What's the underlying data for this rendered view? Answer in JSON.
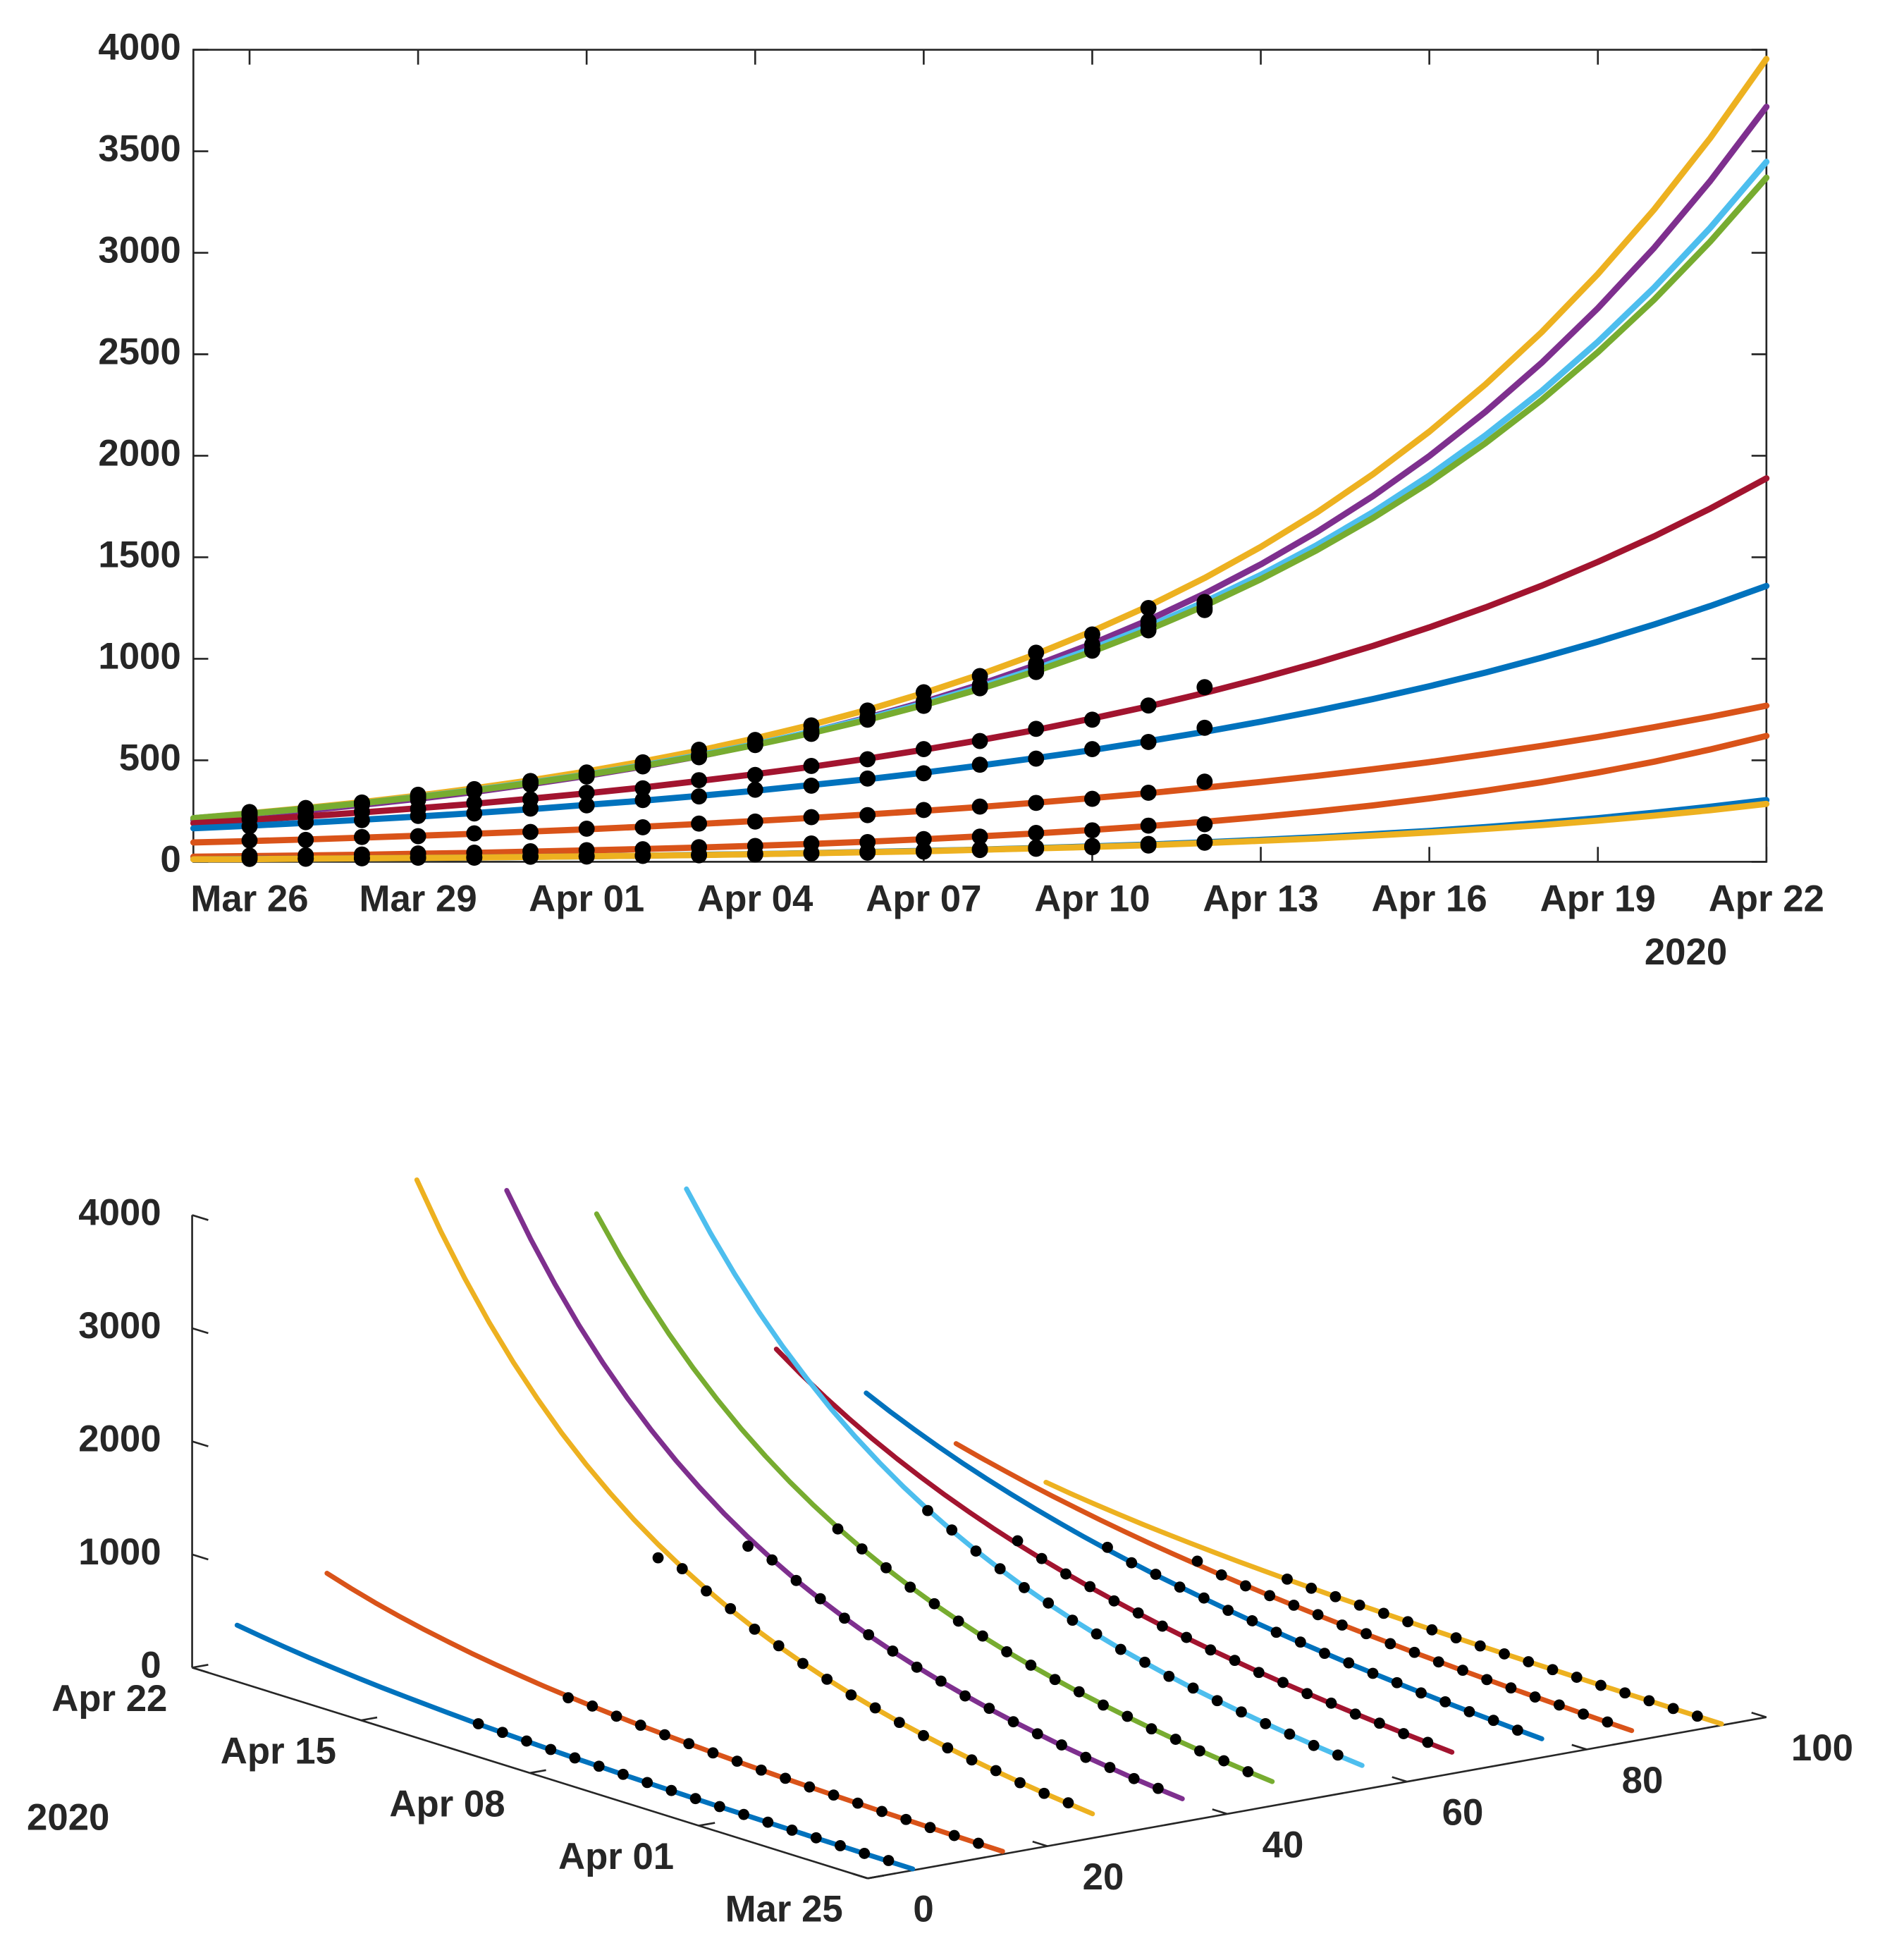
{
  "chart_data": [
    {
      "type": "line",
      "x": [
        "2020-03-25",
        "2020-03-26",
        "2020-03-27",
        "2020-03-28",
        "2020-03-29",
        "2020-03-30",
        "2020-03-31",
        "2020-04-01",
        "2020-04-02",
        "2020-04-03",
        "2020-04-04",
        "2020-04-05",
        "2020-04-06",
        "2020-04-07",
        "2020-04-08",
        "2020-04-09",
        "2020-04-10",
        "2020-04-11",
        "2020-04-12",
        "2020-04-13",
        "2020-04-14",
        "2020-04-15",
        "2020-04-16",
        "2020-04-17",
        "2020-04-18",
        "2020-04-19",
        "2020-04-20",
        "2020-04-21",
        "2020-04-22"
      ],
      "xlim": [
        "2020-03-25",
        "2020-04-22"
      ],
      "xticks": [
        {
          "value": "2020-03-26",
          "label": "Mar 26"
        },
        {
          "value": "2020-03-29",
          "label": "Mar 29"
        },
        {
          "value": "2020-04-01",
          "label": "Apr 01"
        },
        {
          "value": "2020-04-04",
          "label": "Apr 04"
        },
        {
          "value": "2020-04-07",
          "label": "Apr 07"
        },
        {
          "value": "2020-04-10",
          "label": "Apr 10"
        },
        {
          "value": "2020-04-13",
          "label": "Apr 13"
        },
        {
          "value": "2020-04-16",
          "label": "Apr 16"
        },
        {
          "value": "2020-04-19",
          "label": "Apr 19"
        },
        {
          "value": "2020-04-22",
          "label": "Apr 22"
        }
      ],
      "x_year_label": "2020",
      "ylim": [
        0,
        4000
      ],
      "yticks": [
        0,
        500,
        1000,
        1500,
        2000,
        2500,
        3000,
        3500,
        4000
      ],
      "marker_color": "#000000",
      "series": [
        {
          "color": "#EDB120",
          "values": [
            215,
            239,
            265,
            294,
            326,
            362,
            401,
            445,
            494,
            548,
            608,
            675,
            749,
            831,
            922,
            1023,
            1136,
            1260,
            1398,
            1551,
            1721,
            1910,
            2119,
            2352,
            2609,
            2895,
            3213,
            3565,
            3955
          ],
          "observed": [
            null,
            245,
            262,
            290,
            330,
            358,
            398,
            440,
            490,
            552,
            600,
            672,
            745,
            835,
            915,
            1030,
            1120,
            1250,
            1280,
            null,
            null,
            null,
            null,
            null,
            null,
            null,
            null,
            null,
            null
          ]
        },
        {
          "color": "#7E2F8E",
          "values": [
            205,
            227,
            252,
            280,
            310,
            344,
            382,
            423,
            469,
            520,
            577,
            640,
            710,
            787,
            873,
            969,
            1074,
            1191,
            1321,
            1465,
            1625,
            1802,
            1999,
            2217,
            2458,
            2727,
            3024,
            3354,
            3719
          ],
          "observed": [
            null,
            230,
            250,
            282,
            305,
            348,
            380,
            420,
            472,
            515,
            580,
            636,
            712,
            790,
            870,
            975,
            1070,
            1185,
            1240,
            null,
            null,
            null,
            null,
            null,
            null,
            null,
            null,
            null,
            null
          ]
        },
        {
          "color": "#4DBEEE",
          "values": [
            215,
            237,
            262,
            289,
            320,
            353,
            390,
            430,
            475,
            525,
            579,
            640,
            706,
            780,
            861,
            951,
            1050,
            1159,
            1280,
            1413,
            1560,
            1723,
            1902,
            2101,
            2319,
            2561,
            2828,
            3123,
            3448
          ],
          "observed": [
            null,
            240,
            258,
            292,
            318,
            355,
            388,
            433,
            470,
            528,
            575,
            645,
            700,
            785,
            855,
            955,
            1045,
            1165,
            1270,
            null,
            null,
            null,
            null,
            null,
            null,
            null,
            null,
            null,
            null
          ]
        },
        {
          "color": "#77AC30",
          "values": [
            215,
            237,
            262,
            289,
            319,
            351,
            388,
            428,
            472,
            521,
            575,
            634,
            699,
            772,
            851,
            939,
            1036,
            1143,
            1261,
            1392,
            1535,
            1694,
            1869,
            2062,
            2275,
            2510,
            2769,
            3055,
            3370
          ],
          "observed": [
            null,
            235,
            265,
            286,
            322,
            348,
            392,
            425,
            476,
            518,
            578,
            630,
            703,
            768,
            855,
            935,
            1040,
            1140,
            1250,
            null,
            null,
            null,
            null,
            null,
            null,
            null,
            null,
            null,
            null
          ]
        },
        {
          "color": "#A2142F",
          "values": [
            190,
            206,
            224,
            243,
            264,
            286,
            311,
            337,
            366,
            398,
            432,
            468,
            508,
            552,
            599,
            650,
            706,
            766,
            832,
            903,
            980,
            1064,
            1155,
            1253,
            1360,
            1477,
            1603,
            1740,
            1889
          ],
          "observed": [
            null,
            210,
            220,
            246,
            260,
            290,
            308,
            340,
            362,
            402,
            428,
            472,
            505,
            555,
            595,
            655,
            700,
            770,
            860,
            null,
            null,
            null,
            null,
            null,
            null,
            null,
            null,
            null,
            null
          ]
        },
        {
          "color": "#0072BD",
          "values": [
            165,
            178,
            192,
            207,
            223,
            240,
            259,
            280,
            301,
            325,
            350,
            378,
            407,
            439,
            474,
            511,
            550,
            594,
            640,
            690,
            744,
            802,
            865,
            932,
            1005,
            1084,
            1169,
            1260,
            1359
          ],
          "observed": [
            null,
            175,
            195,
            205,
            226,
            238,
            262,
            278,
            304,
            322,
            355,
            375,
            410,
            436,
            478,
            508,
            555,
            590,
            660,
            null,
            null,
            null,
            null,
            null,
            null,
            null,
            null,
            null,
            null
          ]
        },
        {
          "color": "#D95319",
          "values": [
            95,
            102,
            110,
            119,
            128,
            138,
            149,
            160,
            173,
            186,
            201,
            216,
            233,
            251,
            270,
            291,
            314,
            338,
            365,
            393,
            423,
            456,
            491,
            530,
            571,
            615,
            663,
            714,
            769
          ],
          "observed": [
            null,
            105,
            108,
            122,
            126,
            140,
            147,
            163,
            170,
            188,
            198,
            220,
            230,
            255,
            272,
            290,
            310,
            340,
            395,
            null,
            null,
            null,
            null,
            null,
            null,
            null,
            null,
            null,
            null
          ]
        },
        {
          "color": "#D95319",
          "values": [
            25,
            28,
            31,
            35,
            40,
            44,
            50,
            56,
            63,
            70,
            79,
            88,
            99,
            111,
            125,
            140,
            157,
            176,
            197,
            221,
            248,
            278,
            312,
            350,
            392,
            440,
            493,
            553,
            620
          ],
          "observed": [
            null,
            30,
            32,
            36,
            41,
            45,
            52,
            57,
            62,
            72,
            78,
            90,
            97,
            112,
            124,
            142,
            155,
            178,
            185,
            null,
            null,
            null,
            null,
            null,
            null,
            null,
            null,
            null,
            null
          ]
        },
        {
          "color": "#0072BD",
          "values": [
            12,
            14,
            15,
            17,
            19,
            21,
            24,
            27,
            30,
            34,
            38,
            43,
            48,
            54,
            60,
            68,
            76,
            85,
            96,
            108,
            121,
            136,
            152,
            171,
            192,
            215,
            242,
            271,
            304
          ],
          "observed": [
            null,
            20,
            16,
            18,
            21,
            22,
            26,
            28,
            31,
            35,
            40,
            44,
            50,
            55,
            62,
            70,
            78,
            88,
            98,
            null,
            null,
            null,
            null,
            null,
            null,
            null,
            null,
            null,
            null
          ]
        },
        {
          "color": "#EDB120",
          "values": [
            12,
            13,
            15,
            17,
            19,
            21,
            24,
            27,
            30,
            33,
            37,
            42,
            47,
            52,
            59,
            66,
            73,
            82,
            92,
            103,
            115,
            129,
            145,
            162,
            181,
            203,
            227,
            254,
            285
          ],
          "observed": [
            null,
            14,
            15,
            17,
            20,
            20,
            25,
            26,
            29,
            32,
            36,
            41,
            45,
            50,
            58,
            64,
            72,
            80,
            94,
            null,
            null,
            null,
            null,
            null,
            null,
            null,
            null,
            null,
            null
          ]
        }
      ]
    },
    {
      "type": "line3d",
      "xlim": [
        0,
        100
      ],
      "xticks": [
        0,
        20,
        40,
        60,
        80,
        100
      ],
      "ylim": [
        "2020-03-25",
        "2020-04-22"
      ],
      "yticks": [
        {
          "value": "2020-03-25",
          "label": "Mar 25"
        },
        {
          "value": "2020-04-01",
          "label": "Apr 01"
        },
        {
          "value": "2020-04-08",
          "label": "Apr 08"
        },
        {
          "value": "2020-04-15",
          "label": "Apr 15"
        },
        {
          "value": "2020-04-22",
          "label": "Apr 22"
        }
      ],
      "y_year_label": "2020",
      "zlim": [
        0,
        4000
      ],
      "zticks": [
        0,
        1000,
        2000,
        3000,
        4000
      ],
      "series": [
        {
          "depth": 25
        },
        {
          "depth": 35
        },
        {
          "depth": 55
        },
        {
          "depth": 45
        },
        {
          "depth": 65
        },
        {
          "depth": 75
        },
        {
          "depth": 85
        },
        {
          "depth": 15
        },
        {
          "depth": 5
        },
        {
          "depth": 95
        }
      ]
    }
  ]
}
